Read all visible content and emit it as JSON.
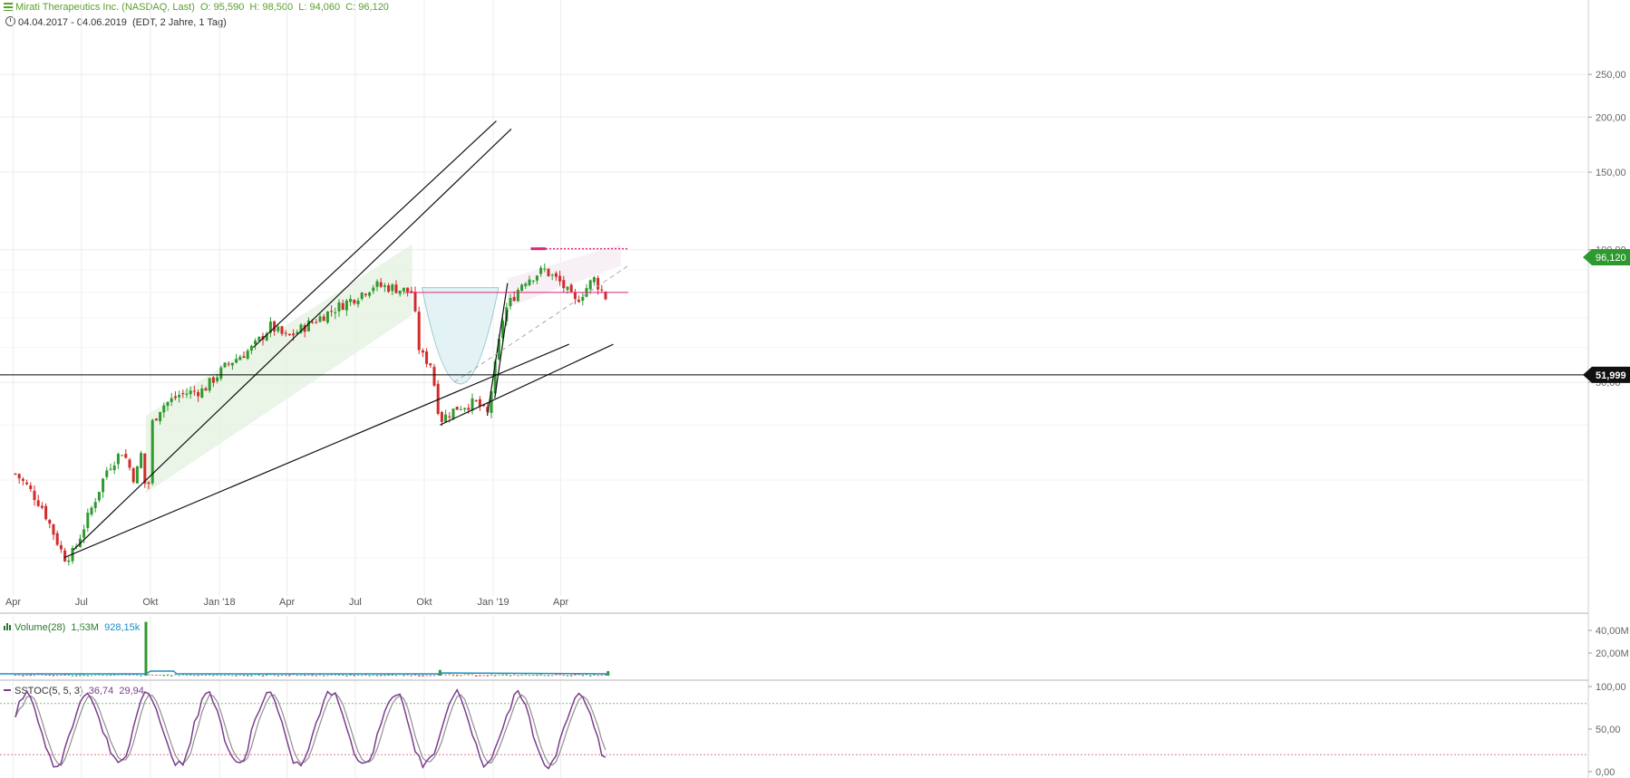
{
  "header": {
    "instrument": "Mirati Therapeutics Inc. (NASDAQ, Last)",
    "ohlc": "O: 95,590  H: 98,500  L: 94,060  C: 96,120",
    "range": "04.04.2017 - 04.06.2019",
    "range_info": "(EDT, 2 Jahre, 1 Tag)"
  },
  "colors": {
    "up": "#2e9a2e",
    "down": "#d12b2b",
    "price_tag": "#2e9a2e",
    "level_tag": "#111111",
    "resistance": "#e0247a",
    "volume_line": "#1e90c8",
    "stoch_k": "#7a3e8e",
    "stoch_d": "#8f8f8f",
    "channel_green": "#e6f2e1",
    "cup_fill": "#e3f3f5"
  },
  "chart_data": [
    {
      "type": "candlestick",
      "title": "Mirati Therapeutics Inc. (NASDAQ, Last)",
      "yscale": "log",
      "ylim": [
        17,
        320
      ],
      "y_ticks": [
        "250,00",
        "200,00",
        "150,00",
        "100,00",
        "50,00"
      ],
      "x_ticks": [
        "Apr",
        "Jul",
        "Okt",
        "Jan '18",
        "Apr",
        "Jul",
        "Okt",
        "Jan '19",
        "Apr"
      ],
      "last_price": "96,120",
      "level_line": "51,999",
      "pivots": [
        [
          "2017-04-04",
          31
        ],
        [
          "2017-04-20",
          29
        ],
        [
          "2017-05-10",
          26
        ],
        [
          "2017-06-08",
          20
        ],
        [
          "2017-06-20",
          20.5
        ],
        [
          "2017-07-15",
          26
        ],
        [
          "2017-08-05",
          32
        ],
        [
          "2017-08-25",
          35
        ],
        [
          "2017-09-10",
          30
        ],
        [
          "2017-09-25",
          38
        ],
        [
          "2017-10-15",
          44
        ],
        [
          "2017-11-10",
          47
        ],
        [
          "2017-12-10",
          48
        ],
        [
          "2018-01-12",
          55
        ],
        [
          "2018-02-15",
          60
        ],
        [
          "2018-03-10",
          67
        ],
        [
          "2018-04-01",
          63
        ],
        [
          "2018-05-01",
          68
        ],
        [
          "2018-06-01",
          73
        ],
        [
          "2018-07-01",
          78
        ],
        [
          "2018-07-25",
          83
        ],
        [
          "2018-08-20",
          82
        ],
        [
          "2018-09-15",
          80
        ],
        [
          "2018-09-25",
          58
        ],
        [
          "2018-10-10",
          55
        ],
        [
          "2018-10-22",
          41
        ],
        [
          "2018-11-15",
          44
        ],
        [
          "2018-12-10",
          45
        ],
        [
          "2018-12-24",
          42
        ],
        [
          "2019-01-15",
          72
        ],
        [
          "2019-02-10",
          85
        ],
        [
          "2019-03-10",
          90
        ],
        [
          "2019-04-01",
          84
        ],
        [
          "2019-04-20",
          76
        ],
        [
          "2019-05-15",
          86
        ],
        [
          "2019-05-31",
          78
        ],
        [
          "2019-06-03",
          94
        ],
        [
          "2019-06-04",
          96.12
        ]
      ],
      "gap": {
        "from": "2017-09-25",
        "from_price": 29.5,
        "to_price": 38.5
      }
    },
    {
      "type": "bar",
      "title": "Volume(28)",
      "values_text": [
        "1,53M",
        "928,15k"
      ],
      "y_ticks": [
        "40,00M",
        "20,00M"
      ],
      "ylim": [
        0,
        48000000
      ],
      "spike": {
        "date": "2017-09-25",
        "value": 47500000
      },
      "small_spikes": [
        {
          "date": "2018-10-22",
          "value": 5000000
        },
        {
          "date": "2019-06-03",
          "value": 4000000
        }
      ],
      "typical_value": 900000
    },
    {
      "type": "line",
      "title": "SSTOC(5, 5, 3)",
      "values_text": [
        "36,74",
        "29,94"
      ],
      "y_ticks": [
        "100,00",
        "50,00",
        "0,00"
      ],
      "ylim": [
        0,
        100
      ],
      "levels": [
        80,
        20
      ]
    }
  ]
}
